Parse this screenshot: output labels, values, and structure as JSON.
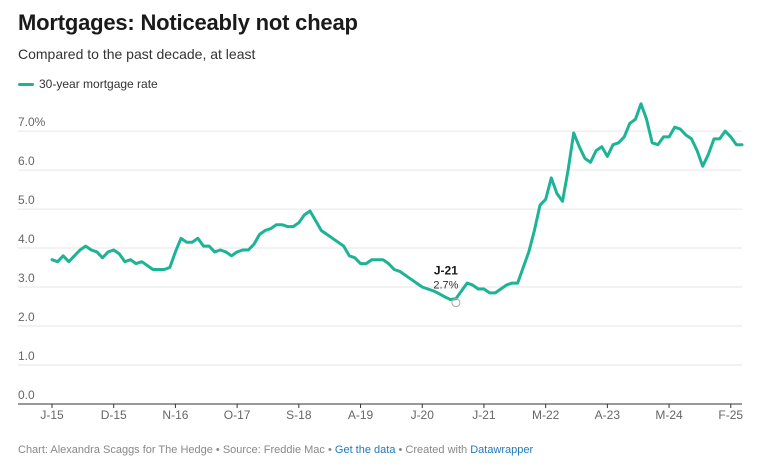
{
  "header": {
    "title": "Mortgages: Noticeably not cheap",
    "subtitle": "Compared to the past decade, at least"
  },
  "colors": {
    "series": "#1db396",
    "grid": "#e6e6e6",
    "axis": "#333333"
  },
  "chart_data": {
    "type": "line",
    "title": "Mortgages: Noticeably not cheap",
    "subtitle": "Compared to the past decade, at least",
    "xlabel": "",
    "ylabel": "",
    "ylim": [
      0,
      7.9
    ],
    "yticks": [
      0,
      1,
      2,
      3,
      4,
      5,
      6,
      7
    ],
    "ytick_labels": [
      "0.0",
      "1.0",
      "2.0",
      "3.0",
      "4.0",
      "5.0",
      "6.0",
      "7.0%"
    ],
    "xticks": [
      {
        "label": "J-15",
        "x": "2015-01"
      },
      {
        "label": "D-15",
        "x": "2015-12"
      },
      {
        "label": "N-16",
        "x": "2016-11"
      },
      {
        "label": "O-17",
        "x": "2017-10"
      },
      {
        "label": "S-18",
        "x": "2018-09"
      },
      {
        "label": "A-19",
        "x": "2019-08"
      },
      {
        "label": "J-20",
        "x": "2020-07"
      },
      {
        "label": "J-21",
        "x": "2021-06"
      },
      {
        "label": "M-22",
        "x": "2022-05"
      },
      {
        "label": "A-23",
        "x": "2023-04"
      },
      {
        "label": "M-24",
        "x": "2024-03"
      },
      {
        "label": "F-25",
        "x": "2025-02"
      }
    ],
    "grid": true,
    "legend_position": "top-left",
    "series": [
      {
        "name": "30-year mortgage rate",
        "points": [
          [
            "2015-01",
            3.7
          ],
          [
            "2015-02",
            3.65
          ],
          [
            "2015-03",
            3.8
          ],
          [
            "2015-04",
            3.65
          ],
          [
            "2015-05",
            3.8
          ],
          [
            "2015-06",
            3.95
          ],
          [
            "2015-07",
            4.05
          ],
          [
            "2015-08",
            3.95
          ],
          [
            "2015-09",
            3.9
          ],
          [
            "2015-10",
            3.75
          ],
          [
            "2015-11",
            3.9
          ],
          [
            "2015-12",
            3.95
          ],
          [
            "2016-01",
            3.85
          ],
          [
            "2016-02",
            3.65
          ],
          [
            "2016-03",
            3.7
          ],
          [
            "2016-04",
            3.6
          ],
          [
            "2016-05",
            3.65
          ],
          [
            "2016-06",
            3.55
          ],
          [
            "2016-07",
            3.45
          ],
          [
            "2016-08",
            3.45
          ],
          [
            "2016-09",
            3.45
          ],
          [
            "2016-10",
            3.5
          ],
          [
            "2016-11",
            3.9
          ],
          [
            "2016-12",
            4.25
          ],
          [
            "2017-01",
            4.15
          ],
          [
            "2017-02",
            4.15
          ],
          [
            "2017-03",
            4.25
          ],
          [
            "2017-04",
            4.05
          ],
          [
            "2017-05",
            4.05
          ],
          [
            "2017-06",
            3.9
          ],
          [
            "2017-07",
            3.95
          ],
          [
            "2017-08",
            3.9
          ],
          [
            "2017-09",
            3.8
          ],
          [
            "2017-10",
            3.9
          ],
          [
            "2017-11",
            3.95
          ],
          [
            "2017-12",
            3.95
          ],
          [
            "2018-01",
            4.1
          ],
          [
            "2018-02",
            4.35
          ],
          [
            "2018-03",
            4.45
          ],
          [
            "2018-04",
            4.5
          ],
          [
            "2018-05",
            4.6
          ],
          [
            "2018-06",
            4.6
          ],
          [
            "2018-07",
            4.55
          ],
          [
            "2018-08",
            4.55
          ],
          [
            "2018-09",
            4.65
          ],
          [
            "2018-10",
            4.85
          ],
          [
            "2018-11",
            4.95
          ],
          [
            "2018-12",
            4.7
          ],
          [
            "2019-01",
            4.45
          ],
          [
            "2019-02",
            4.35
          ],
          [
            "2019-03",
            4.25
          ],
          [
            "2019-04",
            4.15
          ],
          [
            "2019-05",
            4.05
          ],
          [
            "2019-06",
            3.8
          ],
          [
            "2019-07",
            3.75
          ],
          [
            "2019-08",
            3.6
          ],
          [
            "2019-09",
            3.6
          ],
          [
            "2019-10",
            3.7
          ],
          [
            "2019-11",
            3.7
          ],
          [
            "2019-12",
            3.7
          ],
          [
            "2020-01",
            3.6
          ],
          [
            "2020-02",
            3.45
          ],
          [
            "2020-03",
            3.4
          ],
          [
            "2020-04",
            3.3
          ],
          [
            "2020-05",
            3.2
          ],
          [
            "2020-06",
            3.1
          ],
          [
            "2020-07",
            3.0
          ],
          [
            "2020-08",
            2.95
          ],
          [
            "2020-09",
            2.9
          ],
          [
            "2020-10",
            2.83
          ],
          [
            "2020-11",
            2.75
          ],
          [
            "2020-12",
            2.68
          ],
          [
            "2021-01",
            2.7
          ],
          [
            "2021-02",
            2.9
          ],
          [
            "2021-03",
            3.1
          ],
          [
            "2021-04",
            3.05
          ],
          [
            "2021-05",
            2.95
          ],
          [
            "2021-06",
            2.95
          ],
          [
            "2021-07",
            2.85
          ],
          [
            "2021-08",
            2.85
          ],
          [
            "2021-09",
            2.95
          ],
          [
            "2021-10",
            3.05
          ],
          [
            "2021-11",
            3.1
          ],
          [
            "2021-12",
            3.1
          ],
          [
            "2022-01",
            3.5
          ],
          [
            "2022-02",
            3.9
          ],
          [
            "2022-03",
            4.45
          ],
          [
            "2022-04",
            5.1
          ],
          [
            "2022-05",
            5.25
          ],
          [
            "2022-06",
            5.8
          ],
          [
            "2022-07",
            5.4
          ],
          [
            "2022-08",
            5.2
          ],
          [
            "2022-09",
            6.0
          ],
          [
            "2022-10",
            6.95
          ],
          [
            "2022-11",
            6.6
          ],
          [
            "2022-12",
            6.3
          ],
          [
            "2023-01",
            6.2
          ],
          [
            "2023-02",
            6.5
          ],
          [
            "2023-03",
            6.6
          ],
          [
            "2023-04",
            6.35
          ],
          [
            "2023-05",
            6.65
          ],
          [
            "2023-06",
            6.7
          ],
          [
            "2023-07",
            6.85
          ],
          [
            "2023-08",
            7.2
          ],
          [
            "2023-09",
            7.3
          ],
          [
            "2023-10",
            7.7
          ],
          [
            "2023-11",
            7.3
          ],
          [
            "2023-12",
            6.7
          ],
          [
            "2024-01",
            6.65
          ],
          [
            "2024-02",
            6.85
          ],
          [
            "2024-03",
            6.85
          ],
          [
            "2024-04",
            7.1
          ],
          [
            "2024-05",
            7.05
          ],
          [
            "2024-06",
            6.9
          ],
          [
            "2024-07",
            6.8
          ],
          [
            "2024-08",
            6.5
          ],
          [
            "2024-09",
            6.1
          ],
          [
            "2024-10",
            6.4
          ],
          [
            "2024-11",
            6.8
          ],
          [
            "2024-12",
            6.8
          ],
          [
            "2025-01",
            7.0
          ],
          [
            "2025-02",
            6.85
          ],
          [
            "2025-03",
            6.65
          ],
          [
            "2025-04",
            6.65
          ]
        ]
      }
    ],
    "annotations": [
      {
        "label": "J-21",
        "value": "2.7%",
        "x": "2021-01",
        "y": 2.65
      }
    ]
  },
  "footer": {
    "credit": "Chart: Alexandra Scaggs for The Hedge • Source: Freddie Mac • ",
    "data_link": "Get the data",
    "sep": " • Created with ",
    "tool_link": "Datawrapper"
  }
}
